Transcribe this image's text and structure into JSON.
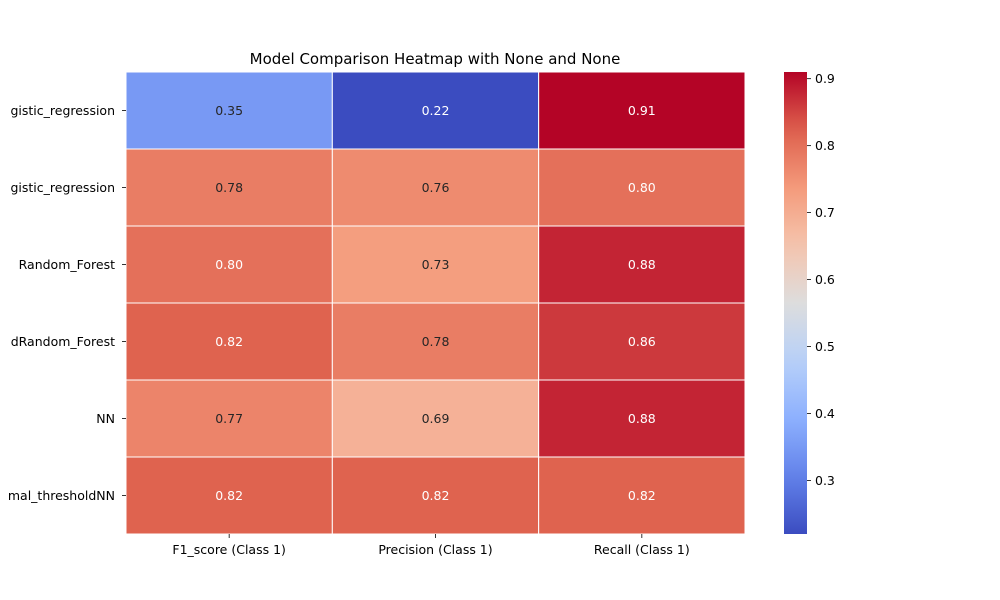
{
  "chart_data": {
    "type": "heatmap",
    "title": "Model Comparison Heatmap with None and None",
    "columns": [
      "F1_score (Class 1)",
      "Precision (Class 1)",
      "Recall (Class 1)"
    ],
    "rows": [
      "gistic_regression",
      "gistic_regression",
      "Random_Forest",
      "dRandom_Forest",
      "NN",
      "mal_thresholdNN"
    ],
    "values": [
      [
        0.35,
        0.22,
        0.91
      ],
      [
        0.78,
        0.76,
        0.8
      ],
      [
        0.8,
        0.73,
        0.88
      ],
      [
        0.82,
        0.78,
        0.86
      ],
      [
        0.77,
        0.69,
        0.88
      ],
      [
        0.82,
        0.82,
        0.82
      ]
    ],
    "value_labels": [
      [
        "0.35",
        "0.22",
        "0.91"
      ],
      [
        "0.78",
        "0.76",
        "0.80"
      ],
      [
        "0.80",
        "0.73",
        "0.88"
      ],
      [
        "0.82",
        "0.78",
        "0.86"
      ],
      [
        "0.77",
        "0.69",
        "0.88"
      ],
      [
        "0.82",
        "0.82",
        "0.82"
      ]
    ],
    "colormap": "coolwarm",
    "vmin": 0.22,
    "vmax": 0.91,
    "colorbar_ticks": [
      "0.3",
      "0.4",
      "0.5",
      "0.6",
      "0.7",
      "0.8",
      "0.9"
    ],
    "colorbar_tick_values": [
      0.3,
      0.4,
      0.5,
      0.6,
      0.7,
      0.8,
      0.9
    ],
    "cell_border_color": "#ffffff"
  }
}
